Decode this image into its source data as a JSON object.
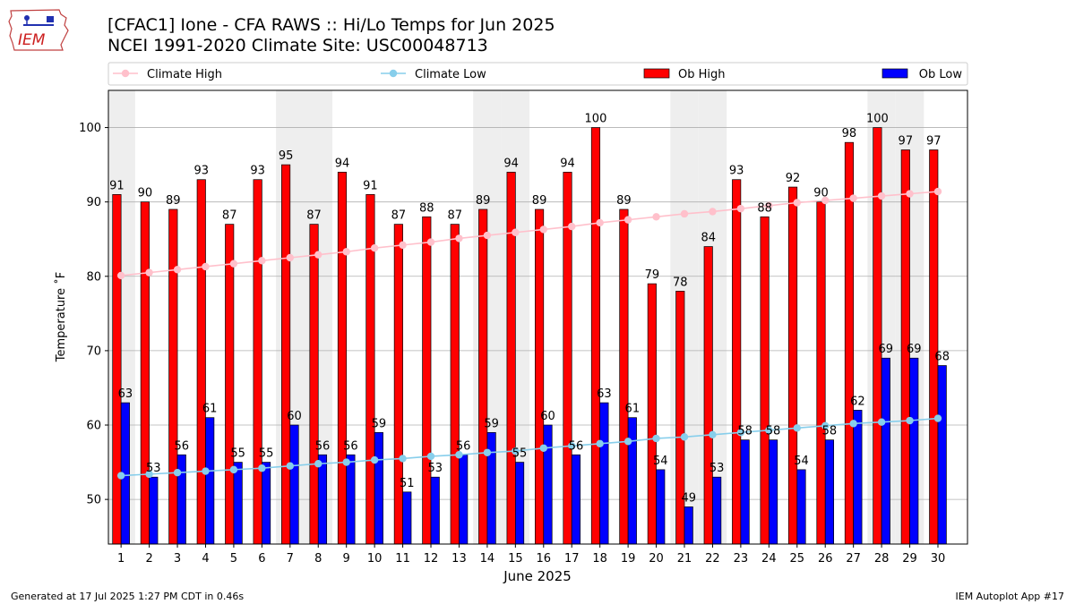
{
  "header": {
    "title_line1": "[CFAC1] Ione - CFA RAWS :: Hi/Lo Temps for Jun 2025",
    "title_line2": "NCEI 1991-2020 Climate Site: USC00048713",
    "logo_text": "IEM"
  },
  "footer": {
    "generated": "Generated at 17 Jul 2025 1:27 PM CDT in 0.46s",
    "app": "IEM Autoplot App #17"
  },
  "colors": {
    "ob_high": "#ff0000",
    "ob_low": "#0000ff",
    "climate_high": "#ffc0cb",
    "climate_low": "#87ceeb",
    "weekend_shade": "#eeeeee",
    "grid": "#b0b0b0"
  },
  "chart_data": {
    "type": "bar",
    "xlabel": "June 2025",
    "ylabel": "Temperature ˚F",
    "ylim": [
      44,
      105
    ],
    "yticks": [
      50,
      60,
      70,
      80,
      90,
      100
    ],
    "grid": "horizontal",
    "legend_placement": "top",
    "categories": [
      "1",
      "2",
      "3",
      "4",
      "5",
      "6",
      "7",
      "8",
      "9",
      "10",
      "11",
      "12",
      "13",
      "14",
      "15",
      "16",
      "17",
      "18",
      "19",
      "20",
      "21",
      "22",
      "23",
      "24",
      "25",
      "26",
      "27",
      "28",
      "29",
      "30"
    ],
    "shaded_days": [
      "1",
      "7",
      "8",
      "14",
      "15",
      "21",
      "22",
      "28",
      "29"
    ],
    "series": [
      {
        "name": "Climate High",
        "type": "line",
        "values": [
          80.1,
          80.5,
          80.9,
          81.3,
          81.7,
          82.1,
          82.5,
          82.9,
          83.3,
          83.8,
          84.2,
          84.6,
          85.1,
          85.5,
          85.9,
          86.3,
          86.7,
          87.2,
          87.6,
          88.0,
          88.4,
          88.7,
          89.1,
          89.5,
          89.9,
          90.2,
          90.5,
          90.8,
          91.1,
          91.4
        ]
      },
      {
        "name": "Climate Low",
        "type": "line",
        "values": [
          53.2,
          53.4,
          53.6,
          53.8,
          54.0,
          54.2,
          54.5,
          54.8,
          55.0,
          55.3,
          55.5,
          55.8,
          56.0,
          56.3,
          56.5,
          56.9,
          57.2,
          57.5,
          57.8,
          58.2,
          58.4,
          58.7,
          59.0,
          59.3,
          59.6,
          59.9,
          60.2,
          60.4,
          60.6,
          60.9
        ]
      },
      {
        "name": "Ob High",
        "type": "bar",
        "values": [
          91,
          90,
          89,
          93,
          87,
          93,
          95,
          87,
          94,
          91,
          87,
          88,
          87,
          89,
          94,
          89,
          94,
          100,
          89,
          79,
          78,
          84,
          93,
          88,
          92,
          90,
          98,
          100,
          97,
          97
        ]
      },
      {
        "name": "Ob Low",
        "type": "bar",
        "values": [
          63,
          53,
          56,
          61,
          55,
          55,
          60,
          56,
          56,
          59,
          51,
          53,
          56,
          59,
          55,
          60,
          56,
          63,
          61,
          54,
          49,
          53,
          58,
          58,
          54,
          58,
          62,
          69,
          69,
          68
        ]
      }
    ]
  }
}
